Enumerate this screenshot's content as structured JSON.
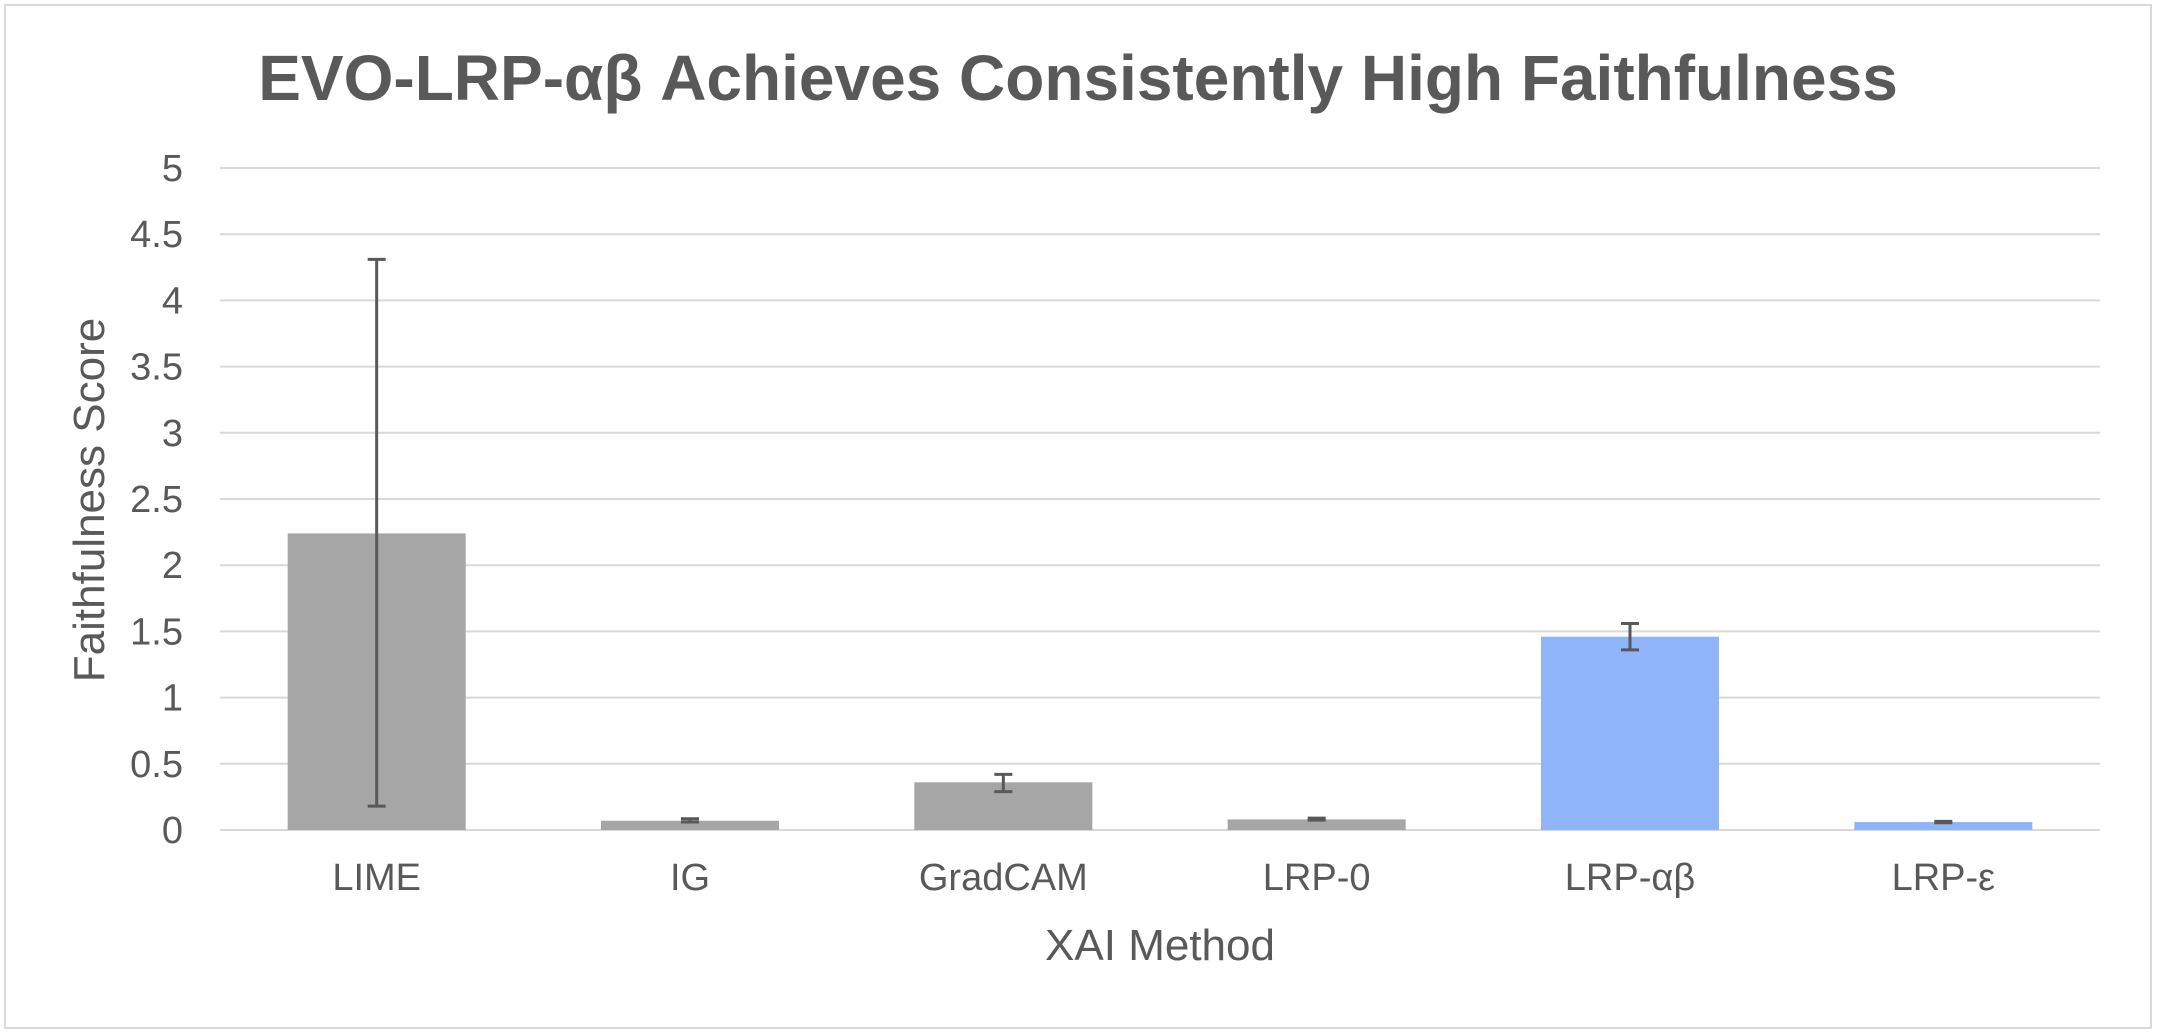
{
  "chart_data": {
    "type": "bar",
    "title": "EVO-LRP-αβ Achieves Consistently High Faithfulness",
    "xlabel": "XAI Method",
    "ylabel": "Faithfulness Score",
    "ylim": [
      0,
      5
    ],
    "yticks": [
      "0",
      "0.5",
      "1",
      "1.5",
      "2",
      "2.5",
      "3",
      "3.5",
      "4",
      "4.5",
      "5"
    ],
    "grid": true,
    "categories": [
      "LIME",
      "IG",
      "GradCAM",
      "LRP-0",
      "LRP-αβ",
      "LRP-ε"
    ],
    "values": [
      2.24,
      0.07,
      0.36,
      0.08,
      1.46,
      0.06
    ],
    "error_low": [
      0.18,
      0.06,
      0.29,
      0.075,
      1.36,
      0.055
    ],
    "error_high": [
      4.31,
      0.085,
      0.42,
      0.09,
      1.56,
      0.065
    ],
    "bar_colors": [
      "#a6a6a6",
      "#a6a6a6",
      "#a6a6a6",
      "#a6a6a6",
      "#8fb4f8",
      "#8fb4f8"
    ],
    "colors": {
      "grid": "#d9d9d9",
      "text": "#595959",
      "error_bar": "#595959"
    }
  }
}
